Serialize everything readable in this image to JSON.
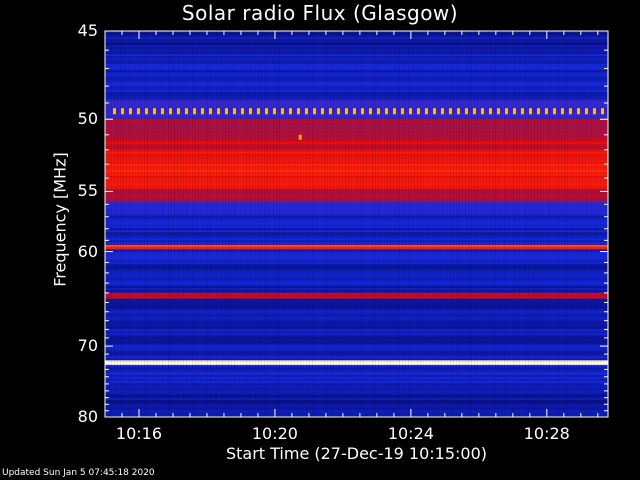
{
  "page": {
    "title": "Solar radio Flux (Glasgow)",
    "footer": "Updated Sun Jan  5 07:45:18 2020"
  },
  "chart_data": {
    "type": "heatmap",
    "title": "Solar radio Flux (Glasgow)",
    "xlabel": "Start Time (27-Dec-19 10:15:00)",
    "ylabel": "Frequency [MHz]",
    "x_tick_labels": [
      "10:16",
      "10:20",
      "10:24",
      "10:28"
    ],
    "x_ticks_minutes": [
      1,
      5,
      9,
      13
    ],
    "xlim_minutes": [
      0,
      14.8
    ],
    "y_tick_labels": [
      "45",
      "50",
      "55",
      "60",
      "70",
      "80"
    ],
    "y_ticks": [
      45,
      50,
      55,
      60,
      70,
      80
    ],
    "ylim": [
      45,
      80
    ],
    "y_scale": "reciprocal",
    "colormap": "blue-red-yellow-white",
    "colors": {
      "background": "#000000",
      "axes": "#ffffff",
      "low": "#1028d8",
      "mid": "#e01010",
      "high": "#ffffff"
    },
    "bands": [
      {
        "from": 45.0,
        "to": 46.2,
        "level": 0.15
      },
      {
        "from": 46.2,
        "to": 48.8,
        "level": 0.22
      },
      {
        "from": 48.8,
        "to": 50.0,
        "level": 0.35
      },
      {
        "from": 50.0,
        "to": 51.2,
        "level": 0.55
      },
      {
        "from": 51.2,
        "to": 52.0,
        "level": 0.62
      },
      {
        "from": 52.0,
        "to": 54.8,
        "level": 0.72
      },
      {
        "from": 54.8,
        "to": 55.8,
        "level": 0.55
      },
      {
        "from": 55.8,
        "to": 56.8,
        "level": 0.3
      },
      {
        "from": 56.8,
        "to": 59.4,
        "level": 0.22
      },
      {
        "from": 59.4,
        "to": 59.8,
        "level": 0.75
      },
      {
        "from": 59.8,
        "to": 60.6,
        "level": 0.25
      },
      {
        "from": 60.6,
        "to": 64.0,
        "level": 0.2
      },
      {
        "from": 64.0,
        "to": 64.6,
        "level": 0.6
      },
      {
        "from": 64.6,
        "to": 68.0,
        "level": 0.18
      },
      {
        "from": 68.0,
        "to": 68.6,
        "level": 0.25
      },
      {
        "from": 68.6,
        "to": 71.8,
        "level": 0.2
      },
      {
        "from": 71.8,
        "to": 72.4,
        "level": 1.0
      },
      {
        "from": 72.4,
        "to": 75.0,
        "level": 0.22
      },
      {
        "from": 75.0,
        "to": 80.0,
        "level": 0.18
      }
    ],
    "burst_freq": 49.5,
    "spot": {
      "x_minute": 5.7,
      "freq": 51.2
    }
  }
}
